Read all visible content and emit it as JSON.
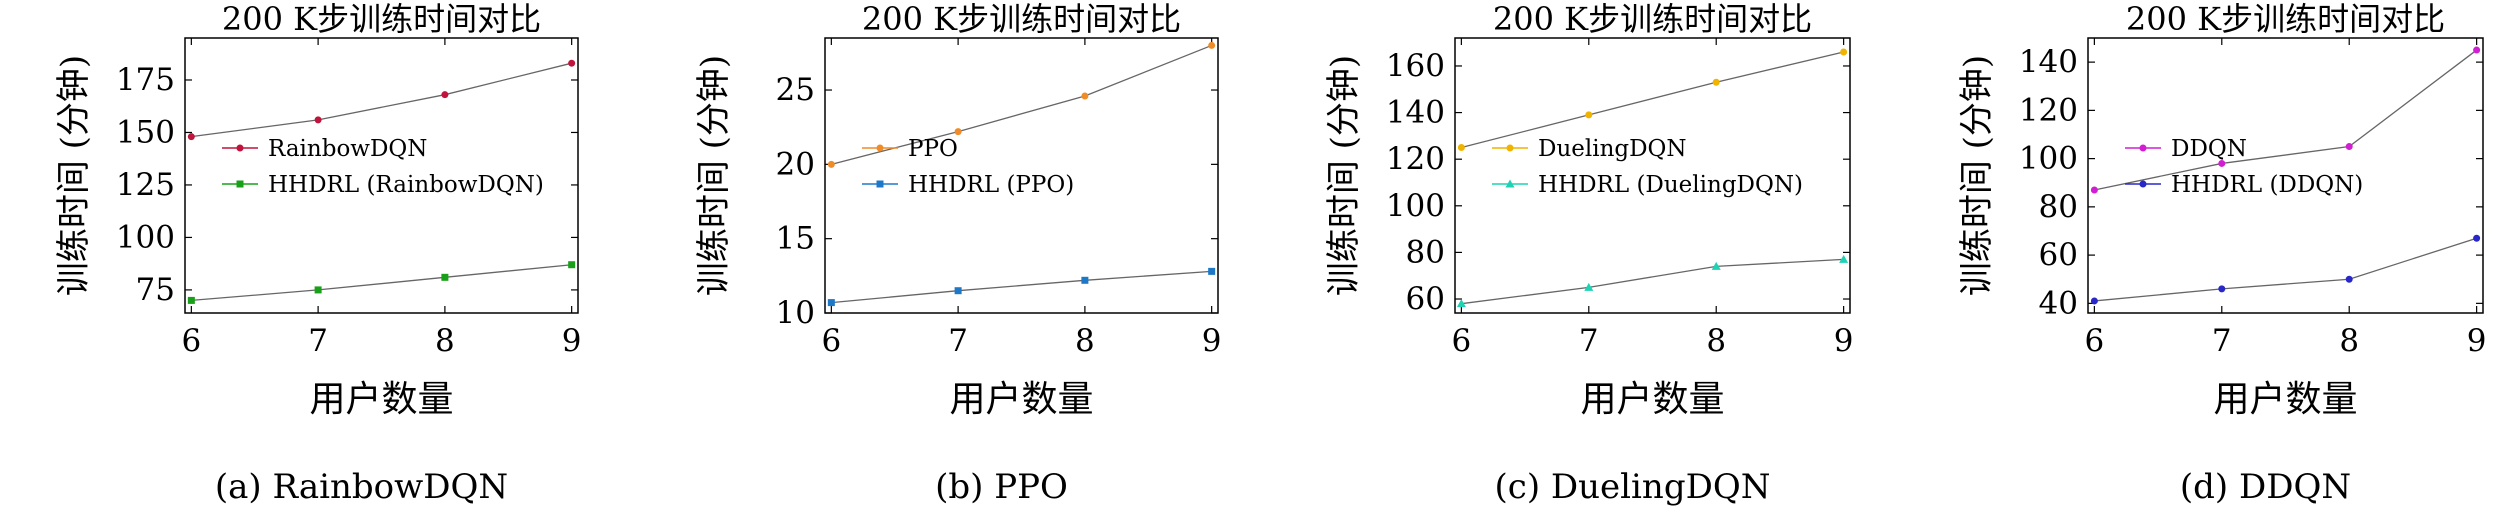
{
  "chart_data": [
    {
      "type": "line",
      "title": "200 K步训练时间对比",
      "xlabel": "用户数量",
      "ylabel": "训练时间 (分钟)",
      "caption": "(a) RainbowDQN",
      "x": [
        6,
        7,
        8,
        9
      ],
      "xticks": [
        6,
        7,
        8,
        9
      ],
      "xlim": [
        5.95,
        9.05
      ],
      "ylim": [
        64,
        195
      ],
      "yticks": [
        75,
        100,
        125,
        150,
        175
      ],
      "legend_position": "center-left",
      "grid": false,
      "series": [
        {
          "name": "RainbowDQN",
          "values": [
            148,
            156,
            168,
            183
          ],
          "color": "#c0143c",
          "marker": "circle"
        },
        {
          "name": "HHDRL (RainbowDQN)",
          "values": [
            70,
            75,
            81,
            87
          ],
          "color": "#18a018",
          "marker": "square"
        }
      ]
    },
    {
      "type": "line",
      "title": "200 K步训练时间对比",
      "xlabel": "用户数量",
      "ylabel": "训练时间 (分钟)",
      "caption": "(b) PPO",
      "x": [
        6,
        7,
        8,
        9
      ],
      "xticks": [
        6,
        7,
        8,
        9
      ],
      "xlim": [
        5.95,
        9.05
      ],
      "ylim": [
        10,
        28.5
      ],
      "yticks": [
        10,
        15,
        20,
        25
      ],
      "legend_position": "center-left",
      "grid": false,
      "series": [
        {
          "name": "PPO",
          "values": [
            20,
            22.2,
            24.6,
            28
          ],
          "color": "#f08c28",
          "marker": "circle"
        },
        {
          "name": "HHDRL (PPO)",
          "values": [
            10.7,
            11.5,
            12.2,
            12.8
          ],
          "color": "#1e78c8",
          "marker": "square"
        }
      ]
    },
    {
      "type": "line",
      "title": "200 K步训练时间对比",
      "xlabel": "用户数量",
      "ylabel": "训练时间 (分钟)",
      "caption": "(c) DuelingDQN",
      "x": [
        6,
        7,
        8,
        9
      ],
      "xticks": [
        6,
        7,
        8,
        9
      ],
      "xlim": [
        5.95,
        9.05
      ],
      "ylim": [
        54,
        172
      ],
      "yticks": [
        60,
        80,
        100,
        120,
        140,
        160
      ],
      "legend_position": "center-left",
      "grid": false,
      "series": [
        {
          "name": "DuelingDQN",
          "values": [
            125,
            139,
            153,
            166
          ],
          "color": "#f0b400",
          "marker": "circle"
        },
        {
          "name": "HHDRL (DuelingDQN)",
          "values": [
            58,
            65,
            74,
            77
          ],
          "color": "#1ed2b4",
          "marker": "triangle"
        }
      ]
    },
    {
      "type": "line",
      "title": "200 K步训练时间对比",
      "xlabel": "用户数量",
      "ylabel": "训练时间 (分钟)",
      "caption": "(d) DDQN",
      "x": [
        6,
        7,
        8,
        9
      ],
      "xticks": [
        6,
        7,
        8,
        9
      ],
      "xlim": [
        5.95,
        9.05
      ],
      "ylim": [
        36,
        150
      ],
      "yticks": [
        40,
        60,
        80,
        100,
        120,
        140
      ],
      "legend_position": "center-left",
      "grid": false,
      "series": [
        {
          "name": "DDQN",
          "values": [
            87,
            98,
            105,
            145
          ],
          "color": "#d21ed2",
          "marker": "circle"
        },
        {
          "name": "HHDRL (DDQN)",
          "values": [
            41,
            46,
            50,
            67
          ],
          "color": "#2828c8",
          "marker": "circle"
        }
      ]
    }
  ]
}
